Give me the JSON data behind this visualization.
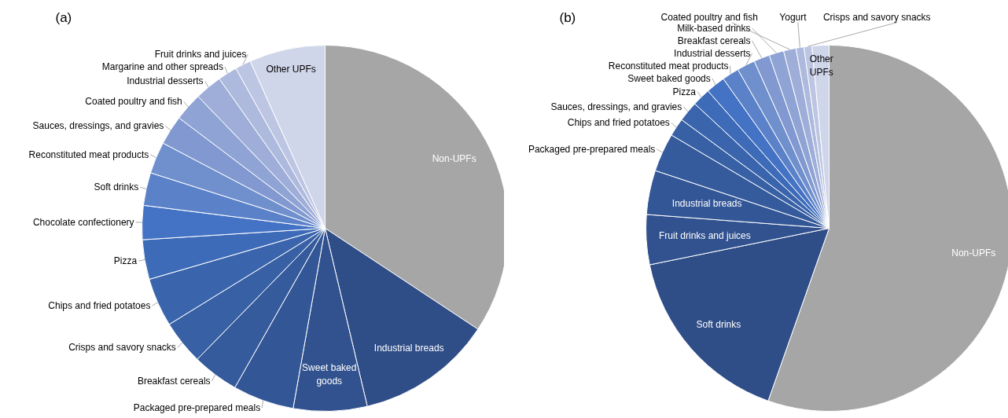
{
  "chart_data": [
    {
      "type": "pie",
      "title": "(a)",
      "categories": [
        "Non-UPFs",
        "Industrial breads",
        "Sweet baked goods",
        "Packaged pre-prepared meals",
        "Breakfast cereals",
        "Crisps and savory snacks",
        "Chips and fried potatoes",
        "Pizza",
        "Chocolate confectionery",
        "Soft drinks",
        "Reconstituted meat products",
        "Sauces, dressings, and gravies",
        "Coated poultry and fish",
        "Industrial desserts",
        "Margarine and other spreads",
        "Fruit drinks and juices",
        "Other UPFs"
      ],
      "values": [
        34.3,
        12.0,
        6.5,
        5.4,
        4.1,
        3.9,
        4.3,
        3.5,
        3.0,
        2.9,
        2.8,
        2.6,
        2.5,
        2.4,
        1.7,
        1.4,
        6.7
      ],
      "colors": [
        "#a6a6a6",
        "#2f4d87",
        "#31528f",
        "#335696",
        "#355b9d",
        "#3760a5",
        "#3a65ad",
        "#3d6bb8",
        "#4472c4",
        "#5b82c9",
        "#6f8fcd",
        "#8199d0",
        "#8fa3d4",
        "#9eaed8",
        "#aebadd",
        "#bcc5e2",
        "#d0d6ea"
      ]
    },
    {
      "type": "pie",
      "title": "(b)",
      "categories": [
        "Non-UPFs",
        "Soft drinks",
        "Fruit drinks and juices",
        "Industrial breads",
        "Packaged pre-prepared meals",
        "Chips and fried potatoes",
        "Sauces, dressings, and gravies",
        "Pizza",
        "Sweet baked goods",
        "Reconstituted meat products",
        "Industrial desserts",
        "Breakfast cereals",
        "Milk-based drinks",
        "Coated poultry and fish",
        "Yogurt",
        "Crisps and savory snacks",
        "Other UPFs"
      ],
      "values": [
        55.4,
        16.4,
        4.4,
        3.9,
        3.4,
        1.6,
        1.8,
        1.6,
        1.7,
        1.5,
        1.6,
        1.4,
        1.3,
        1.1,
        0.7,
        0.7,
        1.5
      ],
      "colors": [
        "#a6a6a6",
        "#2f4d87",
        "#31528f",
        "#335696",
        "#355b9d",
        "#3760a5",
        "#3a65ad",
        "#3d6bb8",
        "#4472c4",
        "#5b82c9",
        "#6f8fcd",
        "#8199d0",
        "#8fa3d4",
        "#9eaed8",
        "#aebadd",
        "#bcc5e2",
        "#d0d6ea"
      ]
    }
  ]
}
